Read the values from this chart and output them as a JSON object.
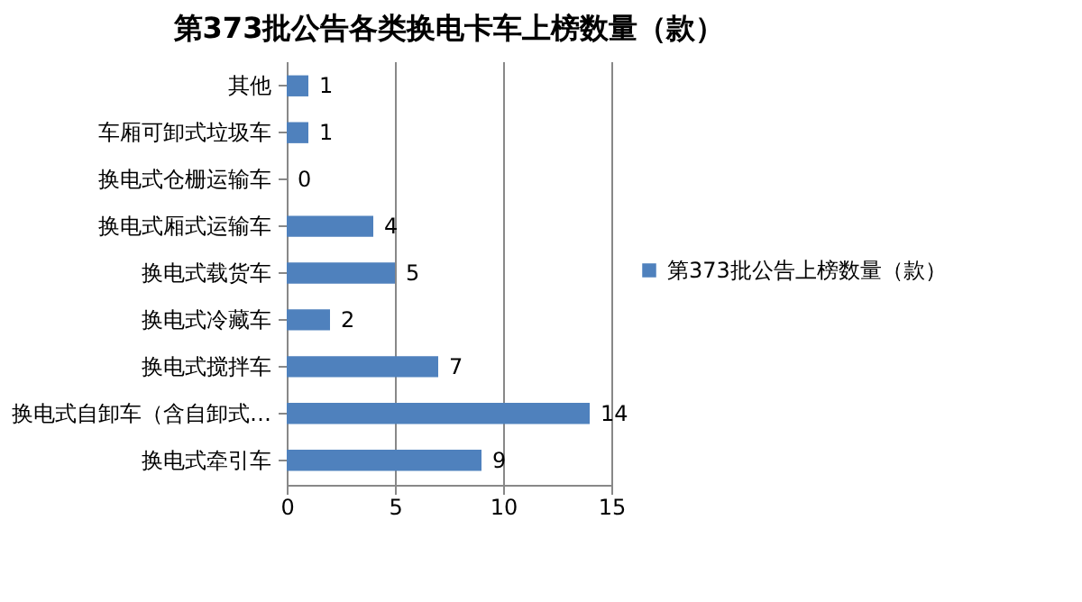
{
  "chart_data": {
    "type": "bar",
    "title": "第373批公告各类换电卡车上榜数量（款）",
    "orientation": "horizontal",
    "categories": [
      "其他",
      "车厢可卸式垃圾车",
      "换电式仓栅运输车",
      "换电式厢式运输车",
      "换电式载货车",
      "换电式冷藏车",
      "换电式搅拌车",
      "换电式自卸车（含自卸式…",
      "换电式牵引车"
    ],
    "series": [
      {
        "name": "第373批公告上榜数量（款）",
        "color": "#4f81bd",
        "values": [
          1,
          1,
          0,
          4,
          5,
          2,
          7,
          14,
          9
        ]
      }
    ],
    "xlim": [
      0,
      15
    ],
    "xticks": [
      0,
      5,
      10,
      15
    ],
    "grid": "x",
    "legend": "right",
    "data_labels": true
  }
}
